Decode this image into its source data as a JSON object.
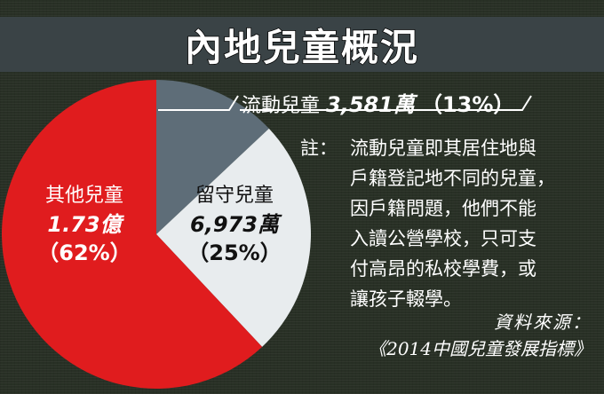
{
  "title": "內地兒童概況",
  "colors": {
    "background": "#283025",
    "banner": "#3a4346",
    "other": "#e01c1e",
    "left_behind": "#e8ecee",
    "migrant": "#5e6d78"
  },
  "chart_data": {
    "type": "pie",
    "title": "內地兒童概況",
    "slices": [
      {
        "key": "migrant",
        "name": "流動兒童",
        "value_text": "3,581萬",
        "value": 3581,
        "unit": "萬",
        "percent": 13,
        "percent_text": "（13%）"
      },
      {
        "key": "left_behind",
        "name": "留守兒童",
        "value_text": "6,973萬",
        "value": 6973,
        "unit": "萬",
        "percent": 25,
        "percent_text": "（25%）"
      },
      {
        "key": "other",
        "name": "其他兒童",
        "value_text": "1.73億",
        "value": 1.73,
        "unit": "億",
        "percent": 62,
        "percent_text": "（62%）"
      }
    ],
    "start_angle_deg": 0,
    "direction": "clockwise"
  },
  "labels": {
    "migrant": {
      "name": "流動兒童",
      "value": "3,581萬",
      "percent": "（13%）"
    },
    "left_behind": {
      "name": "留守兒童",
      "value": "6,973萬",
      "percent": "（25%）"
    },
    "other": {
      "name": "其他兒童",
      "value": "1.73億",
      "percent": "（62%）"
    }
  },
  "note": {
    "prefix": "註：",
    "lines": [
      "流動兒童即其居住地與",
      "戶籍登記地不同的兒童，",
      "因戶籍問題，他們不能",
      "入讀公營學校，只可支",
      "付高昂的私校學費，或",
      "讓孩子輟學。"
    ]
  },
  "source": {
    "label": "資料來源：",
    "publication": "《2014中國兒童發展指標》"
  }
}
